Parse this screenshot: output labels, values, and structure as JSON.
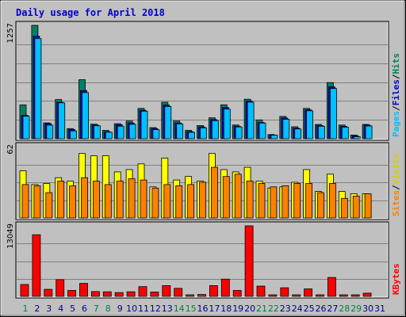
{
  "chart_data": {
    "type": "bar",
    "title": "Daily usage for April 2018",
    "categories": [
      "1",
      "2",
      "3",
      "4",
      "5",
      "6",
      "7",
      "8",
      "9",
      "10",
      "11",
      "12",
      "13",
      "14",
      "15",
      "16",
      "17",
      "18",
      "19",
      "20",
      "21",
      "22",
      "23",
      "24",
      "25",
      "26",
      "27",
      "28",
      "29",
      "30",
      "31"
    ],
    "weekend_days": [
      1,
      7,
      8,
      14,
      15,
      21,
      22,
      28,
      29
    ],
    "colors": {
      "title": "#0000cc",
      "weekday_label": "#000080",
      "weekend_label": "#008040",
      "hits": "#008060",
      "files": "#00a0ff",
      "files_label": "#0000cc",
      "pages": "#00c0ff",
      "sites": "#ff8000",
      "visits": "#ffff00",
      "visits_label": "#d0d000",
      "kbytes": "#ff0000",
      "kbytes_label": "#ff0000"
    },
    "panels": [
      {
        "name": "hits-files-pages",
        "ymax_label": "1257",
        "ymax": 1257,
        "legend": [
          "Pages",
          "/",
          "Files",
          "/",
          "Hits"
        ],
        "series": [
          {
            "name": "Hits",
            "values": [
              375,
              1257,
              175,
              434,
              112,
              654,
              161,
              92,
              166,
              196,
              336,
              123,
              404,
              196,
              92,
              146,
              231,
              376,
              152,
              438,
              208,
              46,
              247,
              132,
              336,
              158,
              622,
              151,
              40,
              158,
              0
            ]
          },
          {
            "name": "Files",
            "values": [
              258,
              1137,
              168,
              404,
              101,
              534,
              150,
              76,
              155,
              174,
              316,
              112,
              374,
              174,
              78,
              130,
              212,
              346,
              138,
              417,
              180,
              40,
              229,
              116,
              320,
              146,
              575,
              137,
              30,
              150,
              0
            ]
          },
          {
            "name": "Pages",
            "values": [
              250,
              1110,
              150,
              397,
              86,
              512,
              143,
              72,
              139,
              160,
              305,
              100,
              357,
              164,
              70,
              120,
              200,
              329,
              130,
              405,
              174,
              39,
              215,
              108,
              309,
              138,
              556,
              128,
              22,
              141,
              0
            ]
          }
        ]
      },
      {
        "name": "visits-sites",
        "ymax_label": "62",
        "ymax": 62,
        "legend": [
          "Sites",
          "/",
          "Visits"
        ],
        "series": [
          {
            "name": "Visits",
            "values": [
              41,
              29,
              30,
              35,
              32,
              56,
              54,
              54,
              40,
              42,
              47,
              27,
              52,
              33,
              36,
              32,
              56,
              42,
              40,
              44,
              32,
              26,
              27,
              31,
              42,
              23,
              38,
              23,
              21,
              21,
              0
            ]
          },
          {
            "name": "Sites",
            "values": [
              29,
              28,
              22,
              32,
              28,
              35,
              32,
              29,
              32,
              34,
              33,
              26,
              29,
              28,
              29,
              31,
              44,
              36,
              38,
              32,
              30,
              27,
              28,
              30,
              30,
              22,
              30,
              17,
              19,
              21,
              0
            ]
          }
        ]
      },
      {
        "name": "kbytes",
        "ymax_label": "13049",
        "ymax": 13049,
        "legend": [
          "KBytes"
        ],
        "series": [
          {
            "name": "KBytes",
            "values": [
              2200,
              11400,
              1300,
              3100,
              1100,
              2400,
              900,
              850,
              700,
              850,
              1800,
              800,
              2000,
              1500,
              300,
              350,
              2000,
              3200,
              1100,
              13049,
              1900,
              300,
              1600,
              300,
              1400,
              300,
              3500,
              300,
              300,
              600,
              0
            ]
          }
        ]
      }
    ]
  }
}
